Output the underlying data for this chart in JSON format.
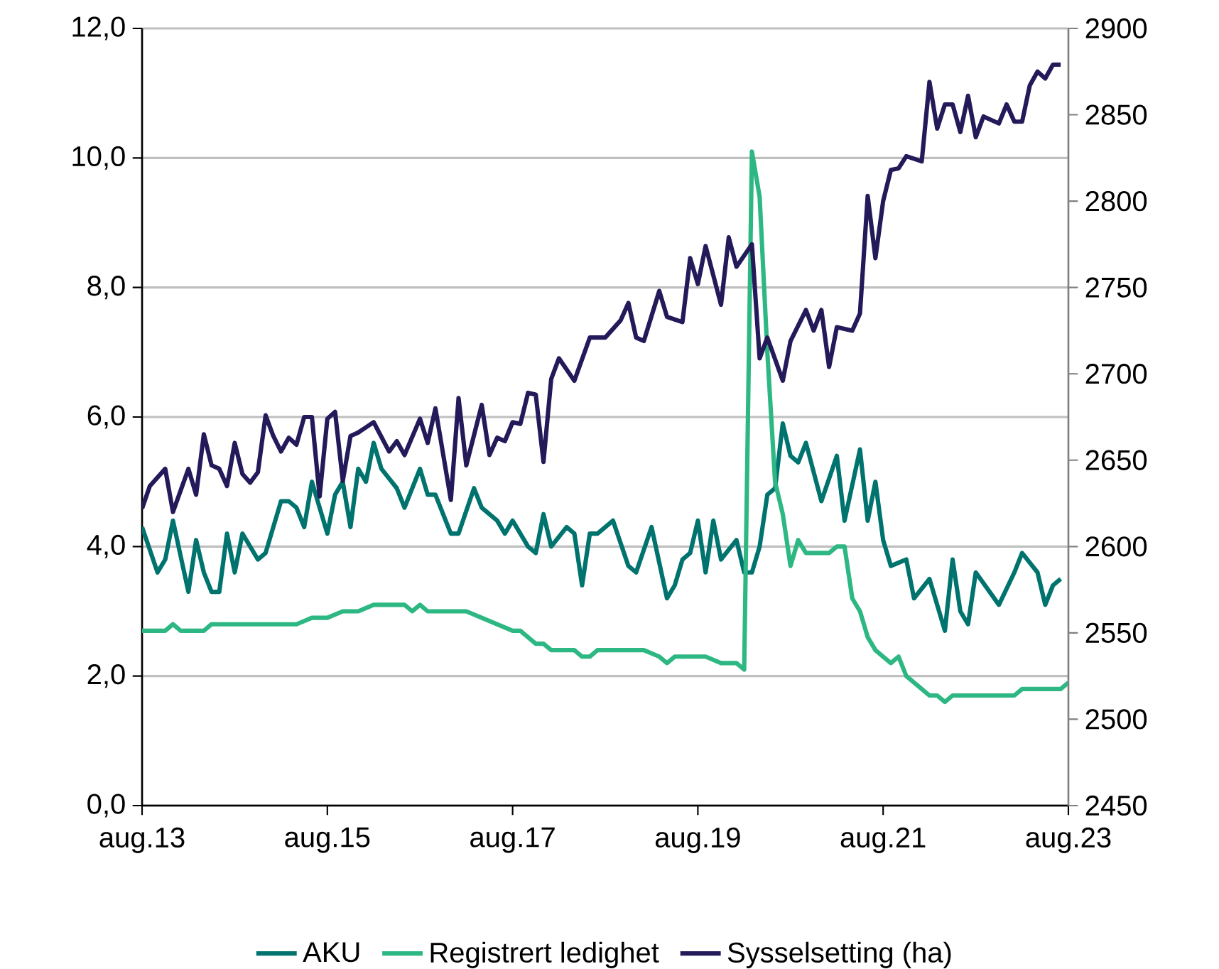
{
  "chart_data": {
    "type": "line",
    "grid": "y",
    "legend": "bottom",
    "line_style": "solid",
    "xlim": [
      "2013-08",
      "2023-08"
    ],
    "xticks": [
      {
        "value": "2013-08",
        "label": "aug.13"
      },
      {
        "value": "2015-08",
        "label": "aug.15"
      },
      {
        "value": "2017-08",
        "label": "aug.17"
      },
      {
        "value": "2019-08",
        "label": "aug.19"
      },
      {
        "value": "2021-08",
        "label": "aug.21"
      },
      {
        "value": "2023-08",
        "label": "aug.23"
      }
    ],
    "ylim": [
      0,
      12
    ],
    "yticks": [
      {
        "value": 0,
        "label": "0,0"
      },
      {
        "value": 2,
        "label": "2,0"
      },
      {
        "value": 4,
        "label": "4,0"
      },
      {
        "value": 6,
        "label": "6,0"
      },
      {
        "value": 8,
        "label": "8,0"
      },
      {
        "value": 10,
        "label": "10,0"
      },
      {
        "value": 12,
        "label": "12,0"
      }
    ],
    "y2lim": [
      2450,
      2900
    ],
    "y2ticks": [
      2450,
      2500,
      2550,
      2600,
      2650,
      2700,
      2750,
      2800,
      2850,
      2900
    ],
    "series": [
      {
        "name": "AKU",
        "color": "#00736e",
        "x": [
          "2013-08",
          "2013-10",
          "2013-11",
          "2013-12",
          "2014-02",
          "2014-03",
          "2014-04",
          "2014-05",
          "2014-06",
          "2014-07",
          "2014-08",
          "2014-09",
          "2014-11",
          "2014-12",
          "2015-02",
          "2015-03",
          "2015-04",
          "2015-05",
          "2015-06",
          "2015-08",
          "2015-09",
          "2015-10",
          "2015-11",
          "2015-12",
          "2016-01",
          "2016-02",
          "2016-03",
          "2016-05",
          "2016-06",
          "2016-08",
          "2016-09",
          "2016-10",
          "2016-12",
          "2017-01",
          "2017-03",
          "2017-04",
          "2017-06",
          "2017-07",
          "2017-08",
          "2017-10",
          "2017-11",
          "2017-12",
          "2018-01",
          "2018-03",
          "2018-04",
          "2018-05",
          "2018-06",
          "2018-07",
          "2018-09",
          "2018-11",
          "2018-12",
          "2019-02",
          "2019-04",
          "2019-05",
          "2019-06",
          "2019-07",
          "2019-08",
          "2019-09",
          "2019-10",
          "2019-11",
          "2020-01",
          "2020-02",
          "2020-03",
          "2020-04",
          "2020-05",
          "2020-06",
          "2020-07",
          "2020-08",
          "2020-09",
          "2020-10",
          "2020-12",
          "2021-02",
          "2021-03",
          "2021-05",
          "2021-06",
          "2021-07",
          "2021-08",
          "2021-09",
          "2021-11",
          "2021-12",
          "2022-02",
          "2022-04",
          "2022-05",
          "2022-06",
          "2022-07",
          "2022-08",
          "2022-11",
          "2023-01",
          "2023-02",
          "2023-04",
          "2023-05",
          "2023-06",
          "2023-07"
        ],
        "values": [
          4.3,
          3.6,
          3.8,
          4.4,
          3.3,
          4.1,
          3.6,
          3.3,
          3.3,
          4.2,
          3.6,
          4.2,
          3.8,
          3.9,
          4.7,
          4.7,
          4.6,
          4.3,
          5.0,
          4.2,
          4.8,
          5.0,
          4.3,
          5.2,
          5.0,
          5.6,
          5.2,
          4.9,
          4.6,
          5.2,
          4.8,
          4.8,
          4.2,
          4.2,
          4.9,
          4.6,
          4.4,
          4.2,
          4.4,
          4.0,
          3.9,
          4.5,
          4.0,
          4.3,
          4.2,
          3.4,
          4.2,
          4.2,
          4.4,
          3.7,
          3.6,
          4.3,
          3.2,
          3.4,
          3.8,
          3.9,
          4.4,
          3.6,
          4.4,
          3.8,
          4.1,
          3.6,
          3.6,
          4.0,
          4.8,
          4.9,
          5.9,
          5.4,
          5.3,
          5.6,
          4.7,
          5.4,
          4.4,
          5.5,
          4.4,
          5.0,
          4.1,
          3.7,
          3.8,
          3.2,
          3.5,
          2.7,
          3.8,
          3.0,
          2.8,
          3.6,
          3.1,
          3.6,
          3.9,
          3.6,
          3.1,
          3.4,
          3.5
        ]
      },
      {
        "name": "Registrert ledighet",
        "color": "#2db783",
        "x": [
          "2013-08",
          "2013-11",
          "2013-12",
          "2014-01",
          "2014-04",
          "2014-05",
          "2015-04",
          "2015-06",
          "2015-08",
          "2015-10",
          "2015-12",
          "2016-02",
          "2016-06",
          "2016-07",
          "2016-08",
          "2016-09",
          "2017-02",
          "2017-04",
          "2017-06",
          "2017-08",
          "2017-09",
          "2017-10",
          "2017-11",
          "2017-12",
          "2018-01",
          "2018-04",
          "2018-05",
          "2018-06",
          "2018-07",
          "2019-01",
          "2019-03",
          "2019-04",
          "2019-05",
          "2019-09",
          "2019-11",
          "2020-01",
          "2020-02",
          "2020-03",
          "2020-04",
          "2020-05",
          "2020-06",
          "2020-07",
          "2020-08",
          "2020-09",
          "2020-10",
          "2021-01",
          "2021-02",
          "2021-03",
          "2021-04",
          "2021-05",
          "2021-06",
          "2021-07",
          "2021-08",
          "2021-09",
          "2021-10",
          "2021-11",
          "2021-12",
          "2022-01",
          "2022-02",
          "2022-03",
          "2022-04",
          "2022-05",
          "2023-01",
          "2023-02",
          "2023-07",
          "2023-08"
        ],
        "values": [
          2.7,
          2.7,
          2.8,
          2.7,
          2.7,
          2.8,
          2.8,
          2.9,
          2.9,
          3.0,
          3.0,
          3.1,
          3.1,
          3.0,
          3.1,
          3.0,
          3.0,
          2.9,
          2.8,
          2.7,
          2.7,
          2.6,
          2.5,
          2.5,
          2.4,
          2.4,
          2.3,
          2.3,
          2.4,
          2.4,
          2.3,
          2.2,
          2.3,
          2.3,
          2.2,
          2.2,
          2.1,
          10.1,
          9.4,
          7.0,
          5.0,
          4.5,
          3.7,
          4.1,
          3.9,
          3.9,
          4.0,
          4.0,
          3.2,
          3.0,
          2.6,
          2.4,
          2.3,
          2.2,
          2.3,
          2.0,
          1.9,
          1.8,
          1.7,
          1.7,
          1.6,
          1.7,
          1.7,
          1.8,
          1.8,
          1.9
        ]
      },
      {
        "name": "Sysselsetting (ha)",
        "color": "#231a5a",
        "axis": "y2",
        "x": [
          "2013-08",
          "2013-09",
          "2013-11",
          "2013-12",
          "2014-02",
          "2014-03",
          "2014-04",
          "2014-05",
          "2014-06",
          "2014-07",
          "2014-08",
          "2014-09",
          "2014-10",
          "2014-11",
          "2014-12",
          "2015-01",
          "2015-02",
          "2015-03",
          "2015-04",
          "2015-05",
          "2015-06",
          "2015-07",
          "2015-08",
          "2015-09",
          "2015-10",
          "2015-11",
          "2015-12",
          "2016-02",
          "2016-04",
          "2016-05",
          "2016-06",
          "2016-08",
          "2016-09",
          "2016-10",
          "2016-12",
          "2017-01",
          "2017-02",
          "2017-04",
          "2017-05",
          "2017-06",
          "2017-07",
          "2017-08",
          "2017-09",
          "2017-10",
          "2017-11",
          "2017-12",
          "2018-01",
          "2018-02",
          "2018-04",
          "2018-06",
          "2018-07",
          "2018-08",
          "2018-10",
          "2018-11",
          "2018-12",
          "2019-01",
          "2019-03",
          "2019-04",
          "2019-06",
          "2019-07",
          "2019-08",
          "2019-09",
          "2019-11",
          "2019-12",
          "2020-01",
          "2020-03",
          "2020-04",
          "2020-05",
          "2020-07",
          "2020-08",
          "2020-10",
          "2020-11",
          "2020-12",
          "2021-01",
          "2021-02",
          "2021-04",
          "2021-05",
          "2021-06",
          "2021-07",
          "2021-08",
          "2021-09",
          "2021-10",
          "2021-11",
          "2022-01",
          "2022-02",
          "2022-03",
          "2022-04",
          "2022-05",
          "2022-06",
          "2022-07",
          "2022-08",
          "2022-09",
          "2022-11",
          "2022-12",
          "2023-01",
          "2023-02",
          "2023-03",
          "2023-04",
          "2023-05",
          "2023-06",
          "2023-07"
        ],
        "values": [
          2622,
          2635,
          2645,
          2620,
          2645,
          2630,
          2665,
          2647,
          2645,
          2635,
          2660,
          2642,
          2637,
          2643,
          2676,
          2664,
          2655,
          2663,
          2659,
          2675,
          2675,
          2629,
          2674,
          2678,
          2638,
          2664,
          2666,
          2672,
          2655,
          2661,
          2653,
          2674,
          2660,
          2680,
          2627,
          2686,
          2647,
          2682,
          2653,
          2663,
          2661,
          2672,
          2671,
          2689,
          2688,
          2649,
          2697,
          2709,
          2696,
          2721,
          2721,
          2721,
          2731,
          2741,
          2721,
          2719,
          2748,
          2733,
          2730,
          2767,
          2752,
          2774,
          2740,
          2779,
          2762,
          2775,
          2709,
          2721,
          2696,
          2719,
          2737,
          2725,
          2737,
          2704,
          2727,
          2725,
          2735,
          2803,
          2767,
          2800,
          2818,
          2819,
          2826,
          2823,
          2869,
          2842,
          2856,
          2856,
          2840,
          2861,
          2837,
          2849,
          2845,
          2856,
          2846,
          2846,
          2867,
          2875,
          2871,
          2879,
          2879
        ]
      }
    ]
  }
}
